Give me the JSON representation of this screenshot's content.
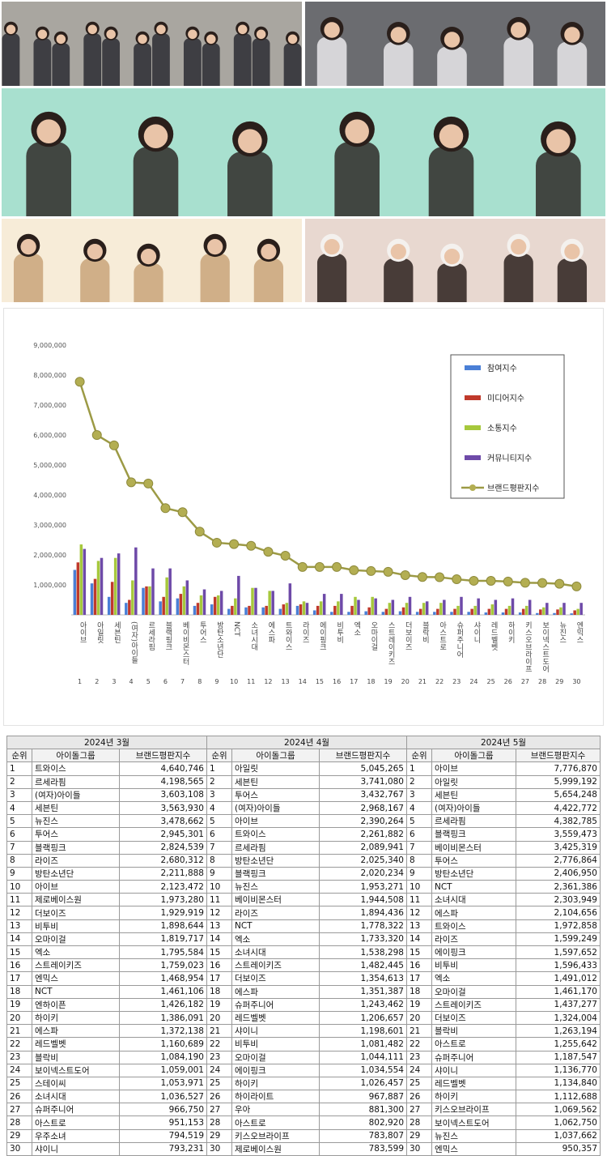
{
  "photos": [
    {
      "name": "photo-group-seventeen",
      "bg": "#a9a6a0",
      "accent": "#2b2c33"
    },
    {
      "name": "photo-group-illit",
      "bg": "#6b6c70",
      "accent": "#e9e7ea"
    },
    {
      "name": "photo-group-lesserafim",
      "bg": "#a8e0cf",
      "accent": "#2f2a28"
    },
    {
      "name": "photo-group-ive",
      "bg": "#f7ecd8",
      "accent": "#c9a57a"
    },
    {
      "name": "photo-group-gidle",
      "bg": "#e8d8d0",
      "accent": "#2b211d"
    }
  ],
  "chart_data": {
    "type": "bar",
    "title": "",
    "xlabel": "",
    "ylabel": "",
    "ylim": [
      0,
      9000000
    ],
    "yticks": [
      "9,000,000",
      "8,000,000",
      "7,000,000",
      "6,000,000",
      "5,000,000",
      "4,000,000",
      "3,000,000",
      "2,000,000",
      "1,000,000"
    ],
    "ytick_values": [
      9000000,
      8000000,
      7000000,
      6000000,
      5000000,
      4000000,
      3000000,
      2000000,
      1000000
    ],
    "ranks": [
      "1",
      "2",
      "3",
      "4",
      "5",
      "6",
      "7",
      "8",
      "9",
      "10",
      "11",
      "12",
      "13",
      "14",
      "15",
      "16",
      "17",
      "18",
      "19",
      "20",
      "21",
      "22",
      "23",
      "24",
      "25",
      "26",
      "27",
      "28",
      "29",
      "30"
    ],
    "categories": [
      "아이브",
      "아일릿",
      "세븐틴",
      "(여자)아이들",
      "르세라핌",
      "블랙핑크",
      "베이비몬스터",
      "투어스",
      "방탄소년단",
      "NCT",
      "소녀시대",
      "에스파",
      "트와이스",
      "라이즈",
      "에이핑크",
      "비투비",
      "엑소",
      "오마이걸",
      "스트레이키즈",
      "더보이즈",
      "블락비",
      "아스트로",
      "슈퍼주니어",
      "샤이니",
      "레드벨벳",
      "하이키",
      "키스오브라이프",
      "보이넥스트도어",
      "뉴진스",
      "엔믹스"
    ],
    "legend_position": "top-right",
    "series": [
      {
        "name": "참여지수",
        "color": "#4a7fd6",
        "type": "bar",
        "values": [
          1500000,
          1050000,
          600000,
          400000,
          900000,
          450000,
          550000,
          300000,
          350000,
          200000,
          250000,
          250000,
          200000,
          300000,
          150000,
          100000,
          100000,
          120000,
          100000,
          120000,
          100000,
          100000,
          100000,
          100000,
          80000,
          80000,
          80000,
          60000,
          60000,
          50000
        ]
      },
      {
        "name": "미디어지수",
        "color": "#c0392b",
        "type": "bar",
        "values": [
          1750000,
          1200000,
          1100000,
          500000,
          950000,
          600000,
          700000,
          400000,
          600000,
          300000,
          300000,
          300000,
          350000,
          350000,
          300000,
          300000,
          300000,
          250000,
          200000,
          250000,
          200000,
          200000,
          200000,
          200000,
          200000,
          200000,
          200000,
          180000,
          180000,
          150000
        ]
      },
      {
        "name": "소통지수",
        "color": "#a6c83c",
        "type": "bar",
        "values": [
          2350000,
          1800000,
          1900000,
          1150000,
          950000,
          1250000,
          950000,
          650000,
          650000,
          550000,
          900000,
          800000,
          400000,
          450000,
          450000,
          450000,
          600000,
          600000,
          400000,
          400000,
          400000,
          400000,
          300000,
          300000,
          350000,
          300000,
          300000,
          250000,
          250000,
          200000
        ]
      },
      {
        "name": "커뮤니티지수",
        "color": "#6e4aa8",
        "type": "bar",
        "values": [
          2200000,
          1900000,
          2050000,
          2250000,
          1550000,
          1550000,
          1150000,
          850000,
          800000,
          1300000,
          900000,
          800000,
          1050000,
          400000,
          700000,
          700000,
          500000,
          550000,
          500000,
          600000,
          450000,
          500000,
          600000,
          550000,
          500000,
          550000,
          500000,
          400000,
          400000,
          400000
        ]
      },
      {
        "name": "브랜드평판지수",
        "color": "#9c9a45",
        "type": "line",
        "values": [
          7776870,
          5999192,
          5654248,
          4422772,
          4382785,
          3559473,
          3425319,
          2776864,
          2406950,
          2361386,
          2303949,
          2104656,
          1972858,
          1599249,
          1597652,
          1596433,
          1491012,
          1461170,
          1437277,
          1324004,
          1263194,
          1255642,
          1187547,
          1136770,
          1134840,
          1112688,
          1069562,
          1062750,
          1037662,
          950357
        ]
      }
    ]
  },
  "tables": [
    {
      "month": "2024년 3월",
      "headers": [
        "순위",
        "아이돌그룹",
        "브랜드평판지수"
      ],
      "rows": [
        [
          "1",
          "트와이스",
          "4,640,746"
        ],
        [
          "2",
          "르세라핌",
          "4,198,565"
        ],
        [
          "3",
          "(여자)아이들",
          "3,603,108"
        ],
        [
          "4",
          "세븐틴",
          "3,563,930"
        ],
        [
          "5",
          "뉴진스",
          "3,478,662"
        ],
        [
          "6",
          "투어스",
          "2,945,301"
        ],
        [
          "7",
          "블랙핑크",
          "2,824,539"
        ],
        [
          "8",
          "라이즈",
          "2,680,312"
        ],
        [
          "9",
          "방탄소년단",
          "2,211,888"
        ],
        [
          "10",
          "아이브",
          "2,123,472"
        ],
        [
          "11",
          "제로베이스원",
          "1,973,280"
        ],
        [
          "12",
          "더보이즈",
          "1,929,919"
        ],
        [
          "13",
          "비투비",
          "1,898,644"
        ],
        [
          "14",
          "오마이걸",
          "1,819,717"
        ],
        [
          "15",
          "엑소",
          "1,795,584"
        ],
        [
          "16",
          "스트레이키즈",
          "1,759,023"
        ],
        [
          "17",
          "엔믹스",
          "1,468,954"
        ],
        [
          "18",
          "NCT",
          "1,461,106"
        ],
        [
          "19",
          "엔하이픈",
          "1,426,182"
        ],
        [
          "20",
          "하이키",
          "1,386,091"
        ],
        [
          "21",
          "에스파",
          "1,372,138"
        ],
        [
          "22",
          "레드벨벳",
          "1,160,689"
        ],
        [
          "23",
          "블락비",
          "1,084,190"
        ],
        [
          "24",
          "보이넥스트도어",
          "1,059,001"
        ],
        [
          "25",
          "스테이씨",
          "1,053,971"
        ],
        [
          "26",
          "소녀시대",
          "1,036,527"
        ],
        [
          "27",
          "슈퍼주니어",
          "966,750"
        ],
        [
          "28",
          "아스트로",
          "951,153"
        ],
        [
          "29",
          "우주소녀",
          "794,519"
        ],
        [
          "30",
          "샤이니",
          "793,231"
        ]
      ]
    },
    {
      "month": "2024년 4월",
      "headers": [
        "순위",
        "아이돌그룹",
        "브랜드평판지수"
      ],
      "rows": [
        [
          "1",
          "아일릿",
          "5,045,265"
        ],
        [
          "2",
          "세븐틴",
          "3,741,080"
        ],
        [
          "3",
          "투어스",
          "3,432,767"
        ],
        [
          "4",
          "(여자)아이들",
          "2,968,167"
        ],
        [
          "5",
          "아이브",
          "2,390,264"
        ],
        [
          "6",
          "트와이스",
          "2,261,882"
        ],
        [
          "7",
          "르세라핌",
          "2,089,941"
        ],
        [
          "8",
          "방탄소년단",
          "2,025,340"
        ],
        [
          "9",
          "블랙핑크",
          "2,020,234"
        ],
        [
          "10",
          "뉴진스",
          "1,953,271"
        ],
        [
          "11",
          "베이비몬스터",
          "1,944,508"
        ],
        [
          "12",
          "라이즈",
          "1,894,436"
        ],
        [
          "13",
          "NCT",
          "1,778,322"
        ],
        [
          "14",
          "엑소",
          "1,733,320"
        ],
        [
          "15",
          "소녀시대",
          "1,538,298"
        ],
        [
          "16",
          "스트레이키즈",
          "1,482,445"
        ],
        [
          "17",
          "더보이즈",
          "1,354,613"
        ],
        [
          "18",
          "에스파",
          "1,351,387"
        ],
        [
          "19",
          "슈퍼주니어",
          "1,243,462"
        ],
        [
          "20",
          "레드벨벳",
          "1,206,657"
        ],
        [
          "21",
          "샤이니",
          "1,198,601"
        ],
        [
          "22",
          "비투비",
          "1,081,482"
        ],
        [
          "23",
          "오마이걸",
          "1,044,111"
        ],
        [
          "24",
          "에이핑크",
          "1,034,554"
        ],
        [
          "25",
          "하이키",
          "1,026,457"
        ],
        [
          "26",
          "하이라이트",
          "967,887"
        ],
        [
          "27",
          "우아",
          "881,300"
        ],
        [
          "28",
          "아스트로",
          "802,920"
        ],
        [
          "29",
          "키스오브라이프",
          "783,807"
        ],
        [
          "30",
          "제로베이스원",
          "783,599"
        ]
      ]
    },
    {
      "month": "2024년 5월",
      "headers": [
        "순위",
        "아이돌그룹",
        "브랜드평판지수"
      ],
      "rows": [
        [
          "1",
          "아이브",
          "7,776,870"
        ],
        [
          "2",
          "아일릿",
          "5,999,192"
        ],
        [
          "3",
          "세븐틴",
          "5,654,248"
        ],
        [
          "4",
          "(여자)아이들",
          "4,422,772"
        ],
        [
          "5",
          "르세라핌",
          "4,382,785"
        ],
        [
          "6",
          "블랙핑크",
          "3,559,473"
        ],
        [
          "7",
          "베이비몬스터",
          "3,425,319"
        ],
        [
          "8",
          "투어스",
          "2,776,864"
        ],
        [
          "9",
          "방탄소년단",
          "2,406,950"
        ],
        [
          "10",
          "NCT",
          "2,361,386"
        ],
        [
          "11",
          "소녀시대",
          "2,303,949"
        ],
        [
          "12",
          "에스파",
          "2,104,656"
        ],
        [
          "13",
          "트와이스",
          "1,972,858"
        ],
        [
          "14",
          "라이즈",
          "1,599,249"
        ],
        [
          "15",
          "에이핑크",
          "1,597,652"
        ],
        [
          "16",
          "비투비",
          "1,596,433"
        ],
        [
          "17",
          "엑소",
          "1,491,012"
        ],
        [
          "18",
          "오마이걸",
          "1,461,170"
        ],
        [
          "19",
          "스트레이키즈",
          "1,437,277"
        ],
        [
          "20",
          "더보이즈",
          "1,324,004"
        ],
        [
          "21",
          "블락비",
          "1,263,194"
        ],
        [
          "22",
          "아스트로",
          "1,255,642"
        ],
        [
          "23",
          "슈퍼주니어",
          "1,187,547"
        ],
        [
          "24",
          "샤이니",
          "1,136,770"
        ],
        [
          "25",
          "레드벨벳",
          "1,134,840"
        ],
        [
          "26",
          "하이키",
          "1,112,688"
        ],
        [
          "27",
          "키스오브라이프",
          "1,069,562"
        ],
        [
          "28",
          "보이넥스트도어",
          "1,062,750"
        ],
        [
          "29",
          "뉴진스",
          "1,037,662"
        ],
        [
          "30",
          "엔믹스",
          "950,357"
        ]
      ]
    }
  ]
}
